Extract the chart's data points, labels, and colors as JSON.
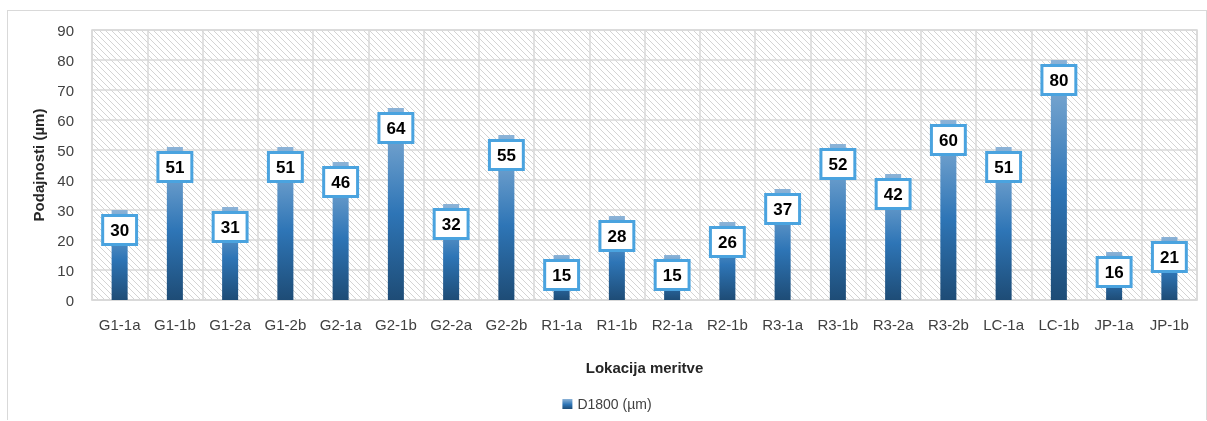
{
  "chart_data": {
    "type": "bar",
    "xlabel": "Lokacija meritve",
    "ylabel": "Podajnosti (µm)",
    "categories": [
      "G1-1a",
      "G1-1b",
      "G1-2a",
      "G1-2b",
      "G2-1a",
      "G2-1b",
      "G2-2a",
      "G2-2b",
      "R1-1a",
      "R1-1b",
      "R2-1a",
      "R2-1b",
      "R3-1a",
      "R3-1b",
      "R3-2a",
      "R3-2b",
      "LC-1a",
      "LC-1b",
      "JP-1a",
      "JP-1b"
    ],
    "series": [
      {
        "name": "D1800 (µm)",
        "color": "#2e75b6",
        "values": [
          30,
          51,
          31,
          51,
          46,
          64,
          32,
          55,
          15,
          28,
          15,
          26,
          37,
          52,
          42,
          60,
          51,
          80,
          16,
          21
        ]
      }
    ],
    "ylim": [
      0,
      90
    ],
    "yticks": [
      0,
      10,
      20,
      30,
      40,
      50,
      60,
      70,
      80,
      90
    ],
    "grid": true,
    "legend": "bottom",
    "data_labels": true
  }
}
